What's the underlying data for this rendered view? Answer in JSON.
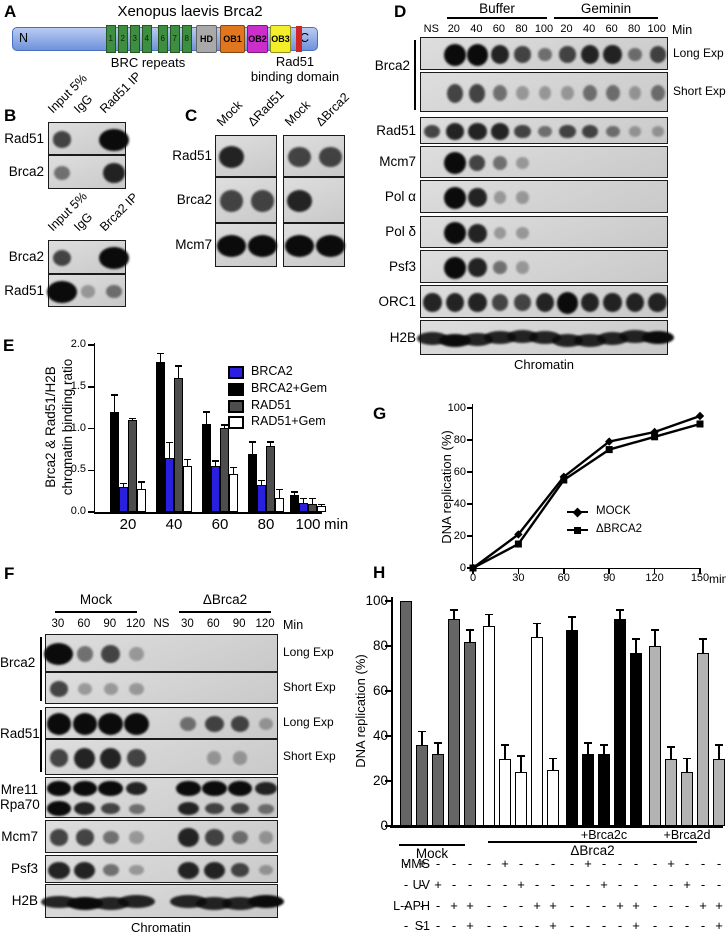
{
  "panels": {
    "a": "A",
    "b": "B",
    "c": "C",
    "d": "D",
    "e": "E",
    "f": "F",
    "g": "G",
    "h": "H"
  },
  "panel_a": {
    "title": "Xenopus laevis Brca2",
    "n_terminus": "N",
    "c_terminus": "C",
    "brc_caption": "BRC repeats",
    "rad51_caption_line1": "Rad51",
    "rad51_caption_line2": "binding domain",
    "brc_numbers": [
      "1",
      "2",
      "3",
      "4",
      "6",
      "7",
      "8"
    ],
    "brc_color": "#3e8e41",
    "bar_color": "#7e9ce2",
    "red_mark_color": "#cf2525",
    "domains": [
      {
        "label": "HD",
        "color": "#a9a9a9"
      },
      {
        "label": "OB1",
        "color": "#e0761d"
      },
      {
        "label": "OB2",
        "color": "#cb2ecb"
      },
      {
        "label": "OB3",
        "color": "#f2ee2a"
      }
    ]
  },
  "panel_b": {
    "top": {
      "lanes": [
        "Input 5%",
        "IgG",
        "Rad51 IP"
      ],
      "boxes": [
        {
          "label": "Rad51",
          "bands": [
            3,
            0,
            6
          ]
        },
        {
          "label": "Brca2",
          "bands": [
            2,
            0,
            4
          ]
        }
      ]
    },
    "bottom": {
      "lanes": [
        "Input 5%",
        "IgG",
        "Brca2 IP"
      ],
      "boxes": [
        {
          "label": "Brca2",
          "bands": [
            3,
            0,
            6
          ]
        },
        {
          "label": "Rad51",
          "bands": [
            6,
            1,
            2
          ]
        }
      ]
    }
  },
  "panel_c": {
    "lanes": [
      "Mock",
      "ΔRad51",
      "Mock",
      "ΔBrca2"
    ],
    "rows": [
      {
        "label": "Rad51",
        "left_bands": [
          4,
          0
        ],
        "right_bands": [
          3,
          3
        ]
      },
      {
        "label": "Brca2",
        "left_bands": [
          3,
          3
        ],
        "right_bands": [
          4,
          0
        ]
      },
      {
        "label": "Mcm7",
        "left_bands": [
          5,
          5
        ],
        "right_bands": [
          5,
          5
        ]
      }
    ]
  },
  "panel_d": {
    "group_labels": [
      "Buffer",
      "Geminin"
    ],
    "lane_labels": [
      "NS",
      "20",
      "40",
      "60",
      "80",
      "100",
      "20",
      "40",
      "60",
      "80",
      "100"
    ],
    "min_label": "Min",
    "bracket_label": "Brca2",
    "bottom_label": "Chromatin",
    "boxes": [
      {
        "label": "",
        "right": "Long Exp",
        "bands": [
          0,
          5,
          5,
          4,
          3,
          2,
          3,
          4,
          4,
          2,
          3
        ]
      },
      {
        "label": "",
        "right": "Short Exp",
        "bands": [
          0,
          3,
          3,
          2,
          1,
          1,
          1,
          2,
          2,
          1,
          2
        ]
      },
      {
        "label": "Rad51",
        "bands": [
          3,
          4,
          4,
          4,
          3,
          2,
          3,
          3,
          2,
          1,
          1
        ]
      },
      {
        "label": "Mcm7",
        "bands": [
          0,
          5,
          3,
          2,
          1,
          0,
          0,
          0,
          0,
          0,
          0
        ]
      },
      {
        "label": "Pol α",
        "bands": [
          0,
          5,
          4,
          1,
          1,
          0,
          0,
          0,
          0,
          0,
          0
        ]
      },
      {
        "label": "Pol δ",
        "bands": [
          0,
          5,
          4,
          1,
          1,
          0,
          0,
          0,
          0,
          0,
          0
        ]
      },
      {
        "label": "Psf3",
        "bands": [
          0,
          5,
          4,
          2,
          1,
          0,
          0,
          0,
          0,
          0,
          0
        ]
      },
      {
        "label": "ORC1",
        "bands": [
          4,
          4,
          4,
          3,
          3,
          4,
          5,
          4,
          4,
          4,
          4
        ]
      },
      {
        "label": "H2B",
        "continuous": true,
        "bands": [
          4,
          5,
          4,
          4,
          4,
          4,
          4,
          4,
          4,
          4,
          5
        ]
      }
    ]
  },
  "panel_f": {
    "group_labels": [
      "Mock",
      "ΔBrca2"
    ],
    "lane_labels": [
      "30",
      "60",
      "90",
      "120",
      "NS",
      "30",
      "60",
      "90",
      "120"
    ],
    "min_label": "Min",
    "bracket_labels": [
      "Brca2",
      "Rad51"
    ],
    "bottom_label": "Chromatin",
    "boxes": [
      {
        "label": "",
        "right": "Long Exp",
        "bands": [
          6,
          2,
          3,
          1,
          0,
          0,
          0,
          0,
          0
        ]
      },
      {
        "label": "",
        "right": "Short Exp",
        "bands": [
          3,
          1,
          1,
          1,
          0,
          0,
          0,
          0,
          0
        ]
      },
      {
        "label": "",
        "right": "Long Exp",
        "bands": [
          5,
          5,
          5,
          5,
          0,
          2,
          3,
          3,
          1
        ]
      },
      {
        "label": "",
        "right": "Short Exp",
        "bands": [
          3,
          4,
          4,
          3,
          0,
          0,
          1,
          1,
          0
        ]
      },
      {
        "label_lines": [
          "Mre11",
          "Rpa70"
        ],
        "rows": [
          [
            5,
            5,
            5,
            4,
            0,
            5,
            5,
            5,
            4
          ],
          [
            5,
            4,
            3,
            2,
            0,
            4,
            3,
            3,
            2
          ]
        ]
      },
      {
        "label": "Mcm7",
        "bands": [
          3,
          3,
          2,
          1,
          0,
          4,
          3,
          2,
          1
        ]
      },
      {
        "label": "Psf3",
        "bands": [
          4,
          4,
          2,
          1,
          0,
          4,
          4,
          3,
          1
        ]
      },
      {
        "label": "H2B",
        "continuous": true,
        "bands": [
          4,
          5,
          4,
          4,
          0,
          4,
          4,
          4,
          5
        ]
      }
    ]
  },
  "chart_data": [
    {
      "id": "E",
      "type": "bar",
      "ylabel_line1": "Brca2 & Rad51/H2B",
      "ylabel_line2": "chromatin binding ratio",
      "xlabel": "min",
      "ylim": [
        0,
        2
      ],
      "yticks": [
        "0.0",
        "0.5",
        "1.0",
        "1.5",
        "2.0"
      ],
      "categories": [
        "20",
        "40",
        "60",
        "80",
        "100"
      ],
      "series": [
        {
          "name": "BRCA2+Gem",
          "color": "#000000",
          "values": [
            1.2,
            1.8,
            1.05,
            0.7,
            0.2
          ],
          "errors": [
            0.2,
            0.1,
            0.15,
            0.14,
            0.04
          ]
        },
        {
          "name": "BRCA2",
          "color": "#2a1fdf",
          "values": [
            0.3,
            0.65,
            0.55,
            0.32,
            0.11
          ],
          "errors": [
            0.04,
            0.18,
            0.06,
            0.06,
            0.05
          ]
        },
        {
          "name": "RAD51",
          "color": "#4d4d4d",
          "values": [
            1.1,
            1.6,
            1.01,
            0.79,
            0.09
          ],
          "errors": [
            0.02,
            0.15,
            0.03,
            0.05,
            0.07
          ]
        },
        {
          "name": "RAD51+Gem",
          "color": "#ffffff",
          "values": [
            0.28,
            0.55,
            0.45,
            0.17,
            0.07
          ],
          "errors": [
            0.08,
            0.08,
            0.08,
            0.1,
            0.02
          ]
        }
      ],
      "legend": [
        {
          "label": "BRCA2",
          "color": "#2a1fdf"
        },
        {
          "label": "BRCA2+Gem",
          "color": "#000000"
        },
        {
          "label": "RAD51",
          "color": "#4d4d4d"
        },
        {
          "label": "RAD51+Gem",
          "color": "#ffffff"
        }
      ]
    },
    {
      "id": "G",
      "type": "line",
      "ylabel": "DNA replication (%)",
      "xlabel": "min",
      "ylim": [
        0,
        100
      ],
      "yticks": [
        0,
        20,
        40,
        60,
        80,
        100
      ],
      "x": [
        0,
        30,
        60,
        90,
        120,
        150
      ],
      "series": [
        {
          "name": "MOCK",
          "marker": "diamond",
          "values": [
            0,
            21,
            57,
            79,
            85,
            95
          ],
          "errors": [
            0,
            0,
            0,
            2,
            2,
            2
          ]
        },
        {
          "name": "ΔBRCA2",
          "marker": "square",
          "values": [
            0,
            15,
            55,
            74,
            82,
            90
          ],
          "errors": [
            0,
            0,
            0,
            2,
            2,
            2
          ]
        }
      ]
    },
    {
      "id": "H",
      "type": "bar",
      "ylabel": "DNA replication (%)",
      "ylim": [
        0,
        100
      ],
      "yticks": [
        0,
        20,
        40,
        60,
        80,
        100
      ],
      "groups": [
        {
          "name": "Mock",
          "color": "#666666",
          "values": [
            100,
            36,
            32,
            92,
            82
          ],
          "errors": [
            0,
            6,
            5,
            4,
            5
          ]
        },
        {
          "name": "ΔBrca2",
          "color": "#ffffff",
          "values": [
            89,
            30,
            24,
            84,
            25
          ],
          "errors": [
            5,
            6,
            7,
            6,
            5
          ]
        },
        {
          "name": "+Brca2c",
          "color": "#000000",
          "values": [
            87,
            32,
            32,
            92,
            77
          ],
          "errors": [
            6,
            5,
            4,
            4,
            6
          ]
        },
        {
          "name": "+Brca2d",
          "color": "#b3b3b3",
          "values": [
            80,
            30,
            24,
            77,
            30
          ],
          "errors": [
            7,
            5,
            6,
            6,
            6
          ]
        }
      ],
      "annotations": {
        "mock": "Mock",
        "dbrca2": "ΔBrca2",
        "brca2c": "+Brca2c",
        "brca2d": "+Brca2d"
      },
      "treatments": [
        {
          "label": "MMS",
          "pattern": [
            "-",
            "+",
            "-",
            "-",
            "-"
          ]
        },
        {
          "label": "UV",
          "pattern": [
            "-",
            "-",
            "+",
            "-",
            "-"
          ]
        },
        {
          "label": "L-APH",
          "pattern": [
            "-",
            "-",
            "-",
            "+",
            "+"
          ]
        },
        {
          "label": "S1",
          "pattern": [
            "-",
            "-",
            "-",
            "-",
            "+"
          ]
        }
      ]
    }
  ]
}
